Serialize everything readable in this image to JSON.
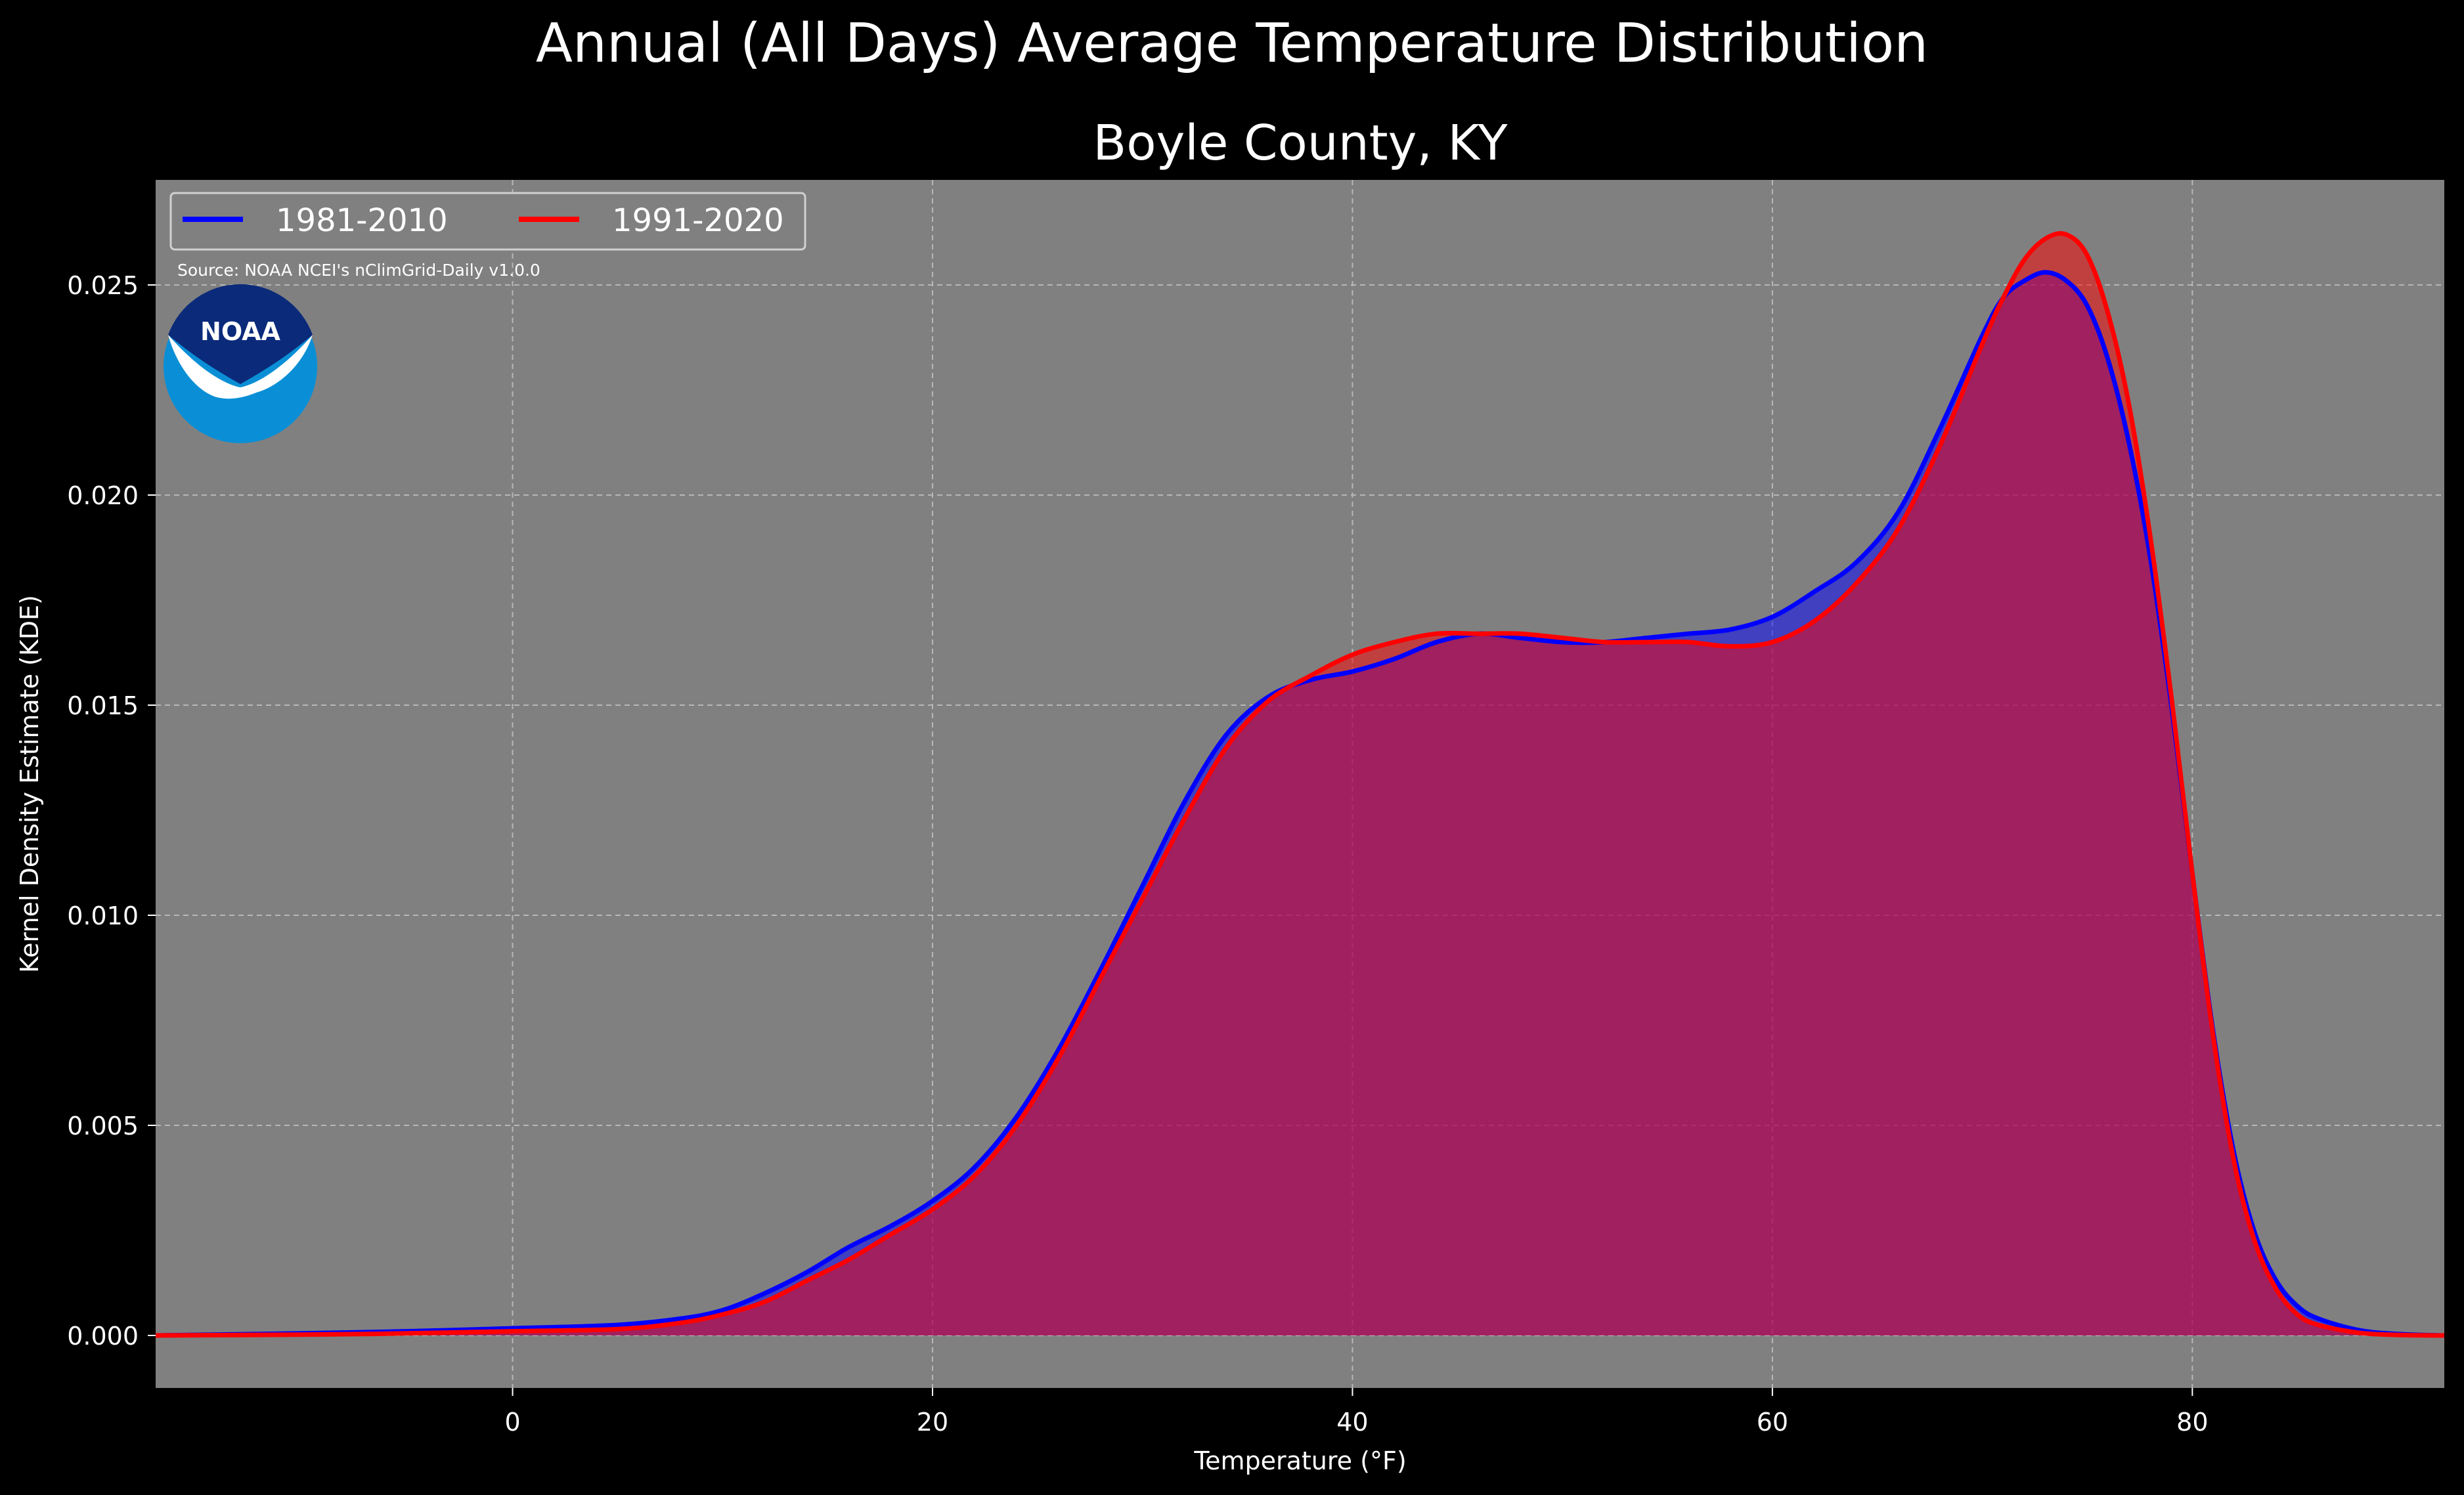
{
  "chart_data": {
    "type": "area",
    "title": "Annual (All Days) Average Temperature Distribution",
    "subtitle": "Boyle County, KY",
    "xlabel": "Temperature (°F)",
    "ylabel": "Kernel Density Estimate (KDE)",
    "source": "Source: NOAA NCEI's nClimGrid-Daily v1.0.0",
    "logo_text": "NOAA",
    "xlim": [
      -17,
      92
    ],
    "ylim": [
      -0.00125,
      0.0275
    ],
    "x_ticks": [
      0,
      20,
      40,
      60,
      80
    ],
    "x_tick_labels": [
      "0",
      "20",
      "40",
      "60",
      "80"
    ],
    "y_ticks": [
      0.0,
      0.005,
      0.01,
      0.015,
      0.02,
      0.025
    ],
    "y_tick_labels": [
      "0.000",
      "0.005",
      "0.010",
      "0.015",
      "0.020",
      "0.025"
    ],
    "grid": true,
    "legend_position": "top-left",
    "background_color": "#000000",
    "plot_background_color": "#808080",
    "series": [
      {
        "name": "1981-2010",
        "color": "#0000ff",
        "fill_color": "#0000ff",
        "x": [
          -17,
          -10,
          -5,
          0,
          5,
          8,
          10,
          12,
          14,
          16,
          18,
          20,
          22,
          24,
          26,
          28,
          30,
          32,
          34,
          36,
          38,
          40,
          42,
          44,
          46,
          48,
          50,
          52,
          54,
          56,
          58,
          60,
          62,
          64,
          66,
          68,
          70,
          71,
          72,
          73,
          74,
          75,
          76,
          77,
          78,
          79,
          80,
          81,
          82,
          83,
          84,
          85,
          86,
          88,
          90,
          92
        ],
        "y": [
          0.0,
          5e-05,
          0.0001,
          0.00017,
          0.00025,
          0.0004,
          0.0006,
          0.001,
          0.0015,
          0.0021,
          0.0026,
          0.0032,
          0.004,
          0.0052,
          0.0068,
          0.0087,
          0.0107,
          0.0127,
          0.0143,
          0.0152,
          0.0156,
          0.0158,
          0.0161,
          0.0165,
          0.0167,
          0.0166,
          0.0165,
          0.0165,
          0.0166,
          0.0167,
          0.0168,
          0.0171,
          0.0177,
          0.0184,
          0.0196,
          0.0216,
          0.0238,
          0.0247,
          0.0251,
          0.0253,
          0.0251,
          0.0245,
          0.0232,
          0.0212,
          0.0185,
          0.015,
          0.011,
          0.0072,
          0.0043,
          0.0024,
          0.0013,
          0.0007,
          0.0004,
          0.00012,
          3e-05,
          0.0
        ]
      },
      {
        "name": "1991-2020",
        "color": "#ff0000",
        "fill_color": "#ff0000",
        "x": [
          -17,
          -10,
          -5,
          0,
          5,
          8,
          10,
          12,
          14,
          16,
          18,
          20,
          22,
          24,
          26,
          28,
          30,
          32,
          34,
          36,
          38,
          40,
          42,
          44,
          46,
          48,
          50,
          52,
          54,
          56,
          58,
          60,
          62,
          64,
          66,
          68,
          70,
          71,
          72,
          73,
          74,
          75,
          76,
          77,
          78,
          79,
          80,
          81,
          82,
          83,
          84,
          85,
          86,
          88,
          90,
          92
        ],
        "y": [
          0.0,
          2e-05,
          5e-05,
          0.0001,
          0.00015,
          0.0003,
          0.0005,
          0.0008,
          0.0013,
          0.0018,
          0.0024,
          0.003,
          0.0038,
          0.005,
          0.0066,
          0.0085,
          0.0104,
          0.0123,
          0.014,
          0.0151,
          0.0157,
          0.0162,
          0.0165,
          0.0167,
          0.0167,
          0.0167,
          0.0166,
          0.0165,
          0.0165,
          0.0165,
          0.0164,
          0.0165,
          0.017,
          0.0179,
          0.0192,
          0.0212,
          0.0236,
          0.0247,
          0.0256,
          0.0261,
          0.0262,
          0.0257,
          0.0243,
          0.0221,
          0.019,
          0.0152,
          0.011,
          0.0071,
          0.0041,
          0.0022,
          0.0011,
          0.0005,
          0.00025,
          6e-05,
          1e-05,
          0.0
        ]
      }
    ]
  }
}
